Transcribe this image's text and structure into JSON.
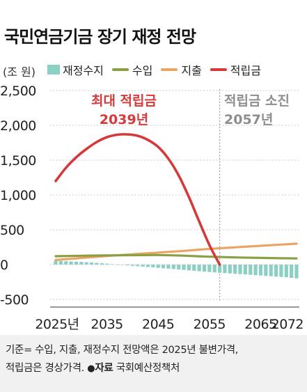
{
  "header": {
    "title": "국민연금기금 장기 재정 전망",
    "unit": "(조 원)"
  },
  "legend": [
    {
      "label": "재정수지",
      "kind": "box",
      "color": "#8ccfc5"
    },
    {
      "label": "수입",
      "kind": "line",
      "color": "#8aa044"
    },
    {
      "label": "지출",
      "kind": "line",
      "color": "#eaa566"
    },
    {
      "label": "적립금",
      "kind": "line",
      "color": "#d5393a"
    }
  ],
  "annotations": {
    "peak_line1": "최대 적립금",
    "peak_line2": "2039년",
    "depletion_line1": "적립금 소진",
    "depletion_line2": "2057년"
  },
  "footer": {
    "line1": "기준= 수입, 지출, 재정수지 전망액은 2025년 불변가격,",
    "line2_prefix": "적립금은 경상가격.",
    "source_label": "자료",
    "source": "국회예산정책처"
  },
  "chart_data": {
    "type": "line",
    "ylabel": "(조 원)",
    "ylim": [
      -500,
      2500
    ],
    "yticks": [
      "2,500",
      "2,000",
      "1,500",
      "1,000",
      "500",
      "0",
      "-500"
    ],
    "ytick_values": [
      2500,
      2000,
      1500,
      1000,
      500,
      0,
      -500
    ],
    "xrange": [
      2025,
      2072
    ],
    "xticks": [
      "2025년",
      "2035",
      "2045",
      "2055",
      "2065",
      "2072"
    ],
    "xtick_values": [
      2025,
      2035,
      2045,
      2055,
      2065,
      2072
    ],
    "series": [
      {
        "name": "적립금",
        "type": "line",
        "color": "#d5393a",
        "x": [
          2025,
          2027,
          2029,
          2031,
          2033,
          2035,
          2037,
          2039,
          2041,
          2043,
          2045,
          2047,
          2049,
          2051,
          2053,
          2055,
          2057
        ],
        "values": [
          1200,
          1390,
          1540,
          1660,
          1760,
          1830,
          1865,
          1870,
          1850,
          1790,
          1690,
          1520,
          1280,
          970,
          620,
          280,
          0
        ]
      },
      {
        "name": "수입",
        "type": "line",
        "color": "#8aa044",
        "x": [
          2025,
          2030,
          2035,
          2040,
          2045,
          2050,
          2055,
          2060,
          2065,
          2072
        ],
        "values": [
          120,
          127,
          132,
          135,
          137,
          128,
          113,
          103,
          96,
          88
        ]
      },
      {
        "name": "지출",
        "type": "line",
        "color": "#eaa566",
        "x": [
          2025,
          2030,
          2035,
          2040,
          2045,
          2050,
          2055,
          2060,
          2065,
          2072
        ],
        "values": [
          66,
          95,
          123,
          148,
          172,
          197,
          225,
          248,
          270,
          300
        ]
      },
      {
        "name": "재정수지",
        "type": "bar",
        "color": "#8ccfc5",
        "x": [
          2025,
          2026,
          2027,
          2028,
          2029,
          2030,
          2031,
          2032,
          2033,
          2034,
          2035,
          2036,
          2037,
          2038,
          2039,
          2040,
          2041,
          2042,
          2043,
          2044,
          2045,
          2046,
          2047,
          2048,
          2049,
          2050,
          2051,
          2052,
          2053,
          2054,
          2055,
          2056,
          2057,
          2058,
          2059,
          2060,
          2061,
          2062,
          2063,
          2064,
          2065,
          2066,
          2067,
          2068,
          2069,
          2070,
          2071,
          2072
        ],
        "values": [
          54,
          51,
          48,
          45,
          42,
          39,
          35,
          30,
          25,
          19,
          13,
          7,
          1,
          -5,
          -11,
          -17,
          -23,
          -29,
          -35,
          -41,
          -47,
          -53,
          -59,
          -65,
          -71,
          -77,
          -83,
          -89,
          -95,
          -101,
          -107,
          -112,
          -117,
          -122,
          -127,
          -132,
          -137,
          -142,
          -147,
          -152,
          -157,
          -162,
          -167,
          -172,
          -177,
          -182,
          -190,
          -198
        ]
      }
    ],
    "depletion_year": 2057,
    "peak_year": 2039
  }
}
